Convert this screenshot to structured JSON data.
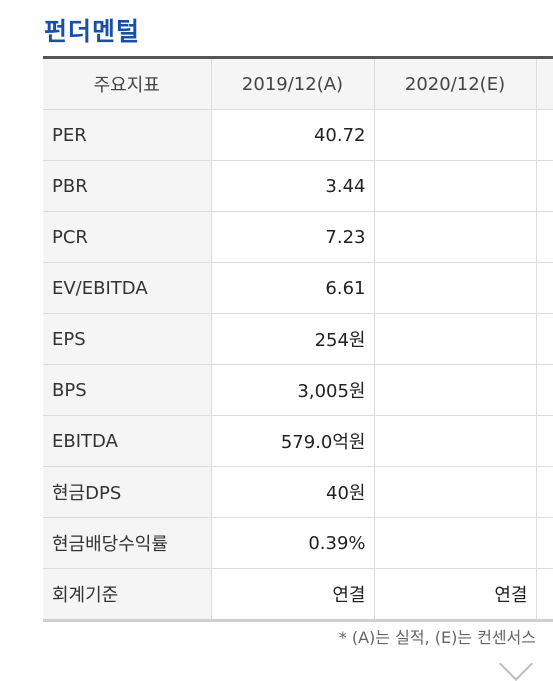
{
  "title": "펀더멘털",
  "table": {
    "header": [
      "주요지표",
      "2019/12(A)",
      "2020/12(E)"
    ],
    "rows": [
      {
        "label": "PER",
        "y2019": "40.72",
        "y2020": ""
      },
      {
        "label": "PBR",
        "y2019": "3.44",
        "y2020": ""
      },
      {
        "label": "PCR",
        "y2019": "7.23",
        "y2020": ""
      },
      {
        "label": "EV/EBITDA",
        "y2019": "6.61",
        "y2020": ""
      },
      {
        "label": "EPS",
        "y2019": "254원",
        "y2020": ""
      },
      {
        "label": "BPS",
        "y2019": "3,005원",
        "y2020": ""
      },
      {
        "label": "EBITDA",
        "y2019": "579.0억원",
        "y2020": ""
      },
      {
        "label": "현금DPS",
        "y2019": "40원",
        "y2020": ""
      },
      {
        "label": "현금배당수익률",
        "y2019": "0.39%",
        "y2020": ""
      },
      {
        "label": "회계기준",
        "y2019": "연결",
        "y2020": "연결"
      }
    ]
  },
  "footnote": "* (A)는 실적, (E)는 컨센서스",
  "icons": {
    "expand": "chevron-down-icon"
  }
}
